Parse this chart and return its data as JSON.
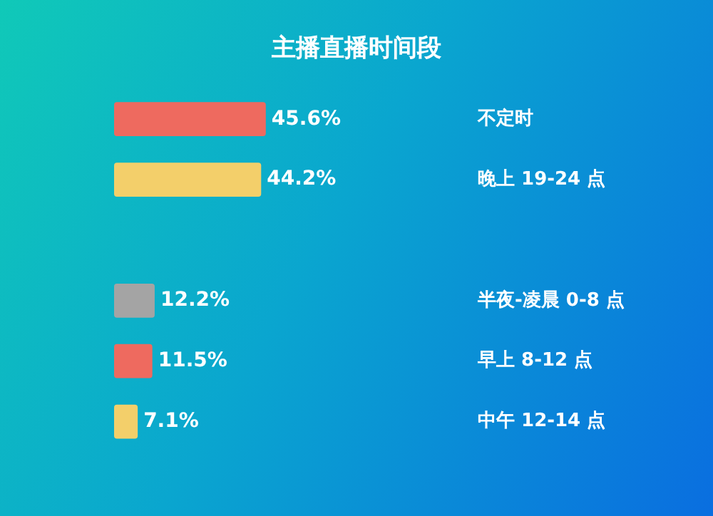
{
  "chart_data": {
    "type": "bar",
    "orientation": "horizontal",
    "title": "主播直播时间段",
    "categories": [
      "不定时",
      "晚上 19-24 点",
      null,
      "半夜-凌晨 0-8 点",
      "早上 8-12 点",
      "中午 12-14 点"
    ],
    "values": [
      45.6,
      44.2,
      null,
      12.2,
      11.5,
      7.1
    ],
    "value_labels": [
      "45.6%",
      "44.2%",
      null,
      "12.2%",
      "11.5%",
      "7.1%"
    ],
    "colors": [
      "#ee6a5f",
      "#f3cf6a",
      "#555555",
      "#a4a4a4",
      "#ee6a5f",
      "#f3cf6a"
    ],
    "tick_labels": "y",
    "legend": false
  }
}
